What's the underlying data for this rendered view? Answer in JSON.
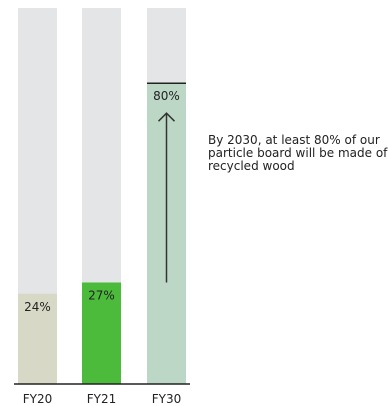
{
  "chart_data": {
    "type": "bar",
    "categories": [
      "FY20",
      "FY21",
      "FY30"
    ],
    "values": [
      24,
      27,
      80
    ],
    "value_labels": [
      "24%",
      "27%",
      "80%"
    ],
    "ylim": [
      0,
      100
    ],
    "title": "",
    "xlabel": "",
    "ylabel": "",
    "grid": false,
    "colors": {
      "track": "#e4e5e6",
      "bars": [
        "#d8d8c6",
        "#4cbb3c",
        "#bcd7c6"
      ],
      "target_line": "#222222",
      "arrow": "#333333"
    },
    "annotation": "By 2030, at least 80% of our particle board will be made of recycled wood"
  }
}
